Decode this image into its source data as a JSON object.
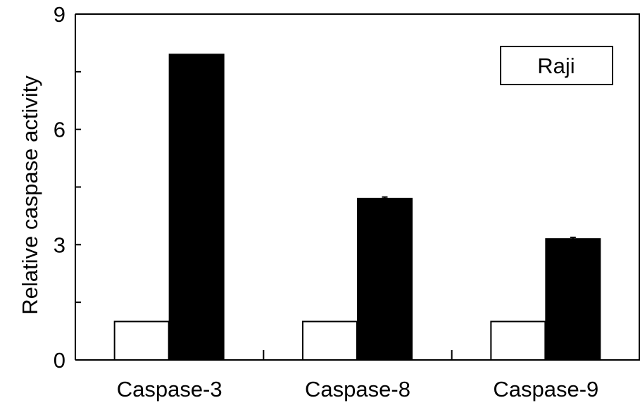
{
  "chart_data": {
    "type": "bar",
    "title": "",
    "xlabel": "",
    "ylabel": "Relative caspase activity",
    "ylim": [
      0,
      9
    ],
    "yticks": [
      "0",
      "3",
      "6",
      "9"
    ],
    "categories": [
      "Caspase-3",
      "Caspase-8",
      "Caspase-9"
    ],
    "series": [
      {
        "values": [
          1.0,
          1.0,
          1.0
        ],
        "color": "#ffffff"
      },
      {
        "values": [
          7.95,
          4.2,
          3.15
        ],
        "errors": [
          0.0,
          0.04,
          0.04
        ],
        "color": "#000000"
      }
    ],
    "legend_label": "Raji",
    "legend_position": "top-right",
    "grid": false
  }
}
